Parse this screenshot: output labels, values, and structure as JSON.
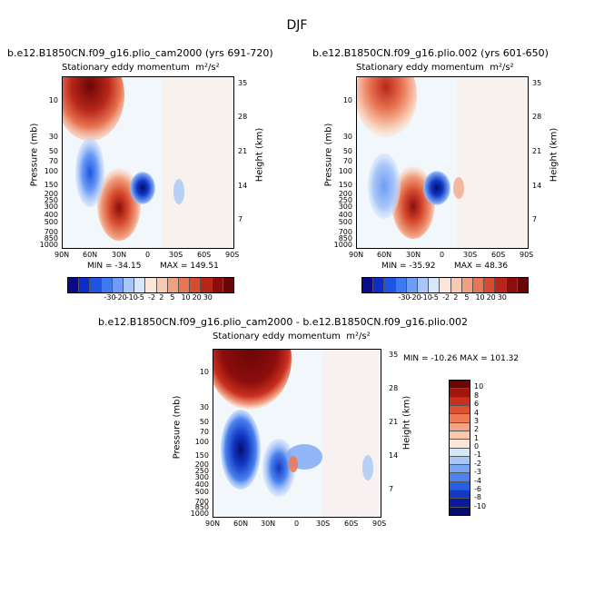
{
  "season": "DJF",
  "panels": [
    {
      "title": "b.e12.B1850CN.f09_g16.plio_cam2000 (yrs 691-720)",
      "subtitle": "Stationary eddy momentum",
      "units": "m²/s²",
      "min_label": "MIN = -34.15",
      "max_label": "MAX = 149.51"
    },
    {
      "title": "b.e12.B1850CN.f09_g16.plio.002 (yrs 601-650)",
      "subtitle": "Stationary eddy momentum",
      "units": "m²/s²",
      "min_label": "MIN = -35.92",
      "max_label": "MAX = 48.36"
    },
    {
      "title": "b.e12.B1850CN.f09_g16.plio_cam2000 - b.e12.B1850CN.f09_g16.plio.002",
      "subtitle": "Stationary eddy momentum",
      "units": "m²/s²",
      "minmax_label": "MIN = -10.26   MAX = 101.32"
    }
  ],
  "axes": {
    "ylabel_left": "Pressure (mb)",
    "ylabel_right": "Height (km)",
    "x_ticks": [
      "90N",
      "60N",
      "30N",
      "0",
      "30S",
      "60S",
      "90S"
    ],
    "pressure_ticks": [
      "10",
      "30",
      "50",
      "70",
      "100",
      "150",
      "200",
      "250",
      "300",
      "400",
      "500",
      "700",
      "850",
      "1000"
    ],
    "height_ticks": [
      "35",
      "28",
      "21",
      "14",
      "7"
    ]
  },
  "colorbar_top": {
    "labels": [
      "-30",
      "-20",
      "-10",
      "-5",
      "-2",
      "2",
      "5",
      "10",
      "20",
      "30"
    ],
    "colors": [
      "#0a0a8c",
      "#0d2ec6",
      "#1e55e0",
      "#3d79ef",
      "#6f9df5",
      "#a8c6f8",
      "#d7e7fb",
      "#fbe6da",
      "#f8c9b1",
      "#f1a07f",
      "#e87553",
      "#d74b2e",
      "#b8261a",
      "#8c0d0d",
      "#6a0606"
    ]
  },
  "colorbar_diff": {
    "labels": [
      "10",
      "8",
      "6",
      "4",
      "3",
      "2",
      "1",
      "0",
      "-1",
      "-2",
      "-3",
      "-4",
      "-6",
      "-8",
      "-10"
    ],
    "colors": [
      "#6a0606",
      "#a3160f",
      "#c92f1e",
      "#de5233",
      "#ec7b56",
      "#f3a283",
      "#f8c7ad",
      "#fbe6da",
      "#d7e7fb",
      "#a8c6f8",
      "#7aa5f4",
      "#4c82ee",
      "#265fe2",
      "#1238c4",
      "#0a1a9a",
      "#050c6e"
    ]
  },
  "chart_data": [
    {
      "type": "heatmap",
      "title": "b.e12.B1850CN.f09_g16.plio_cam2000 (yrs 691-720)",
      "variable": "Stationary eddy momentum (m²/s²)",
      "x_axis": "latitude",
      "x_range": [
        "90N",
        "90S"
      ],
      "y_axis": "Pressure (mb)",
      "y_range": [
        1000,
        10
      ],
      "min": -34.15,
      "max": 149.51,
      "features": [
        {
          "lat": 65,
          "p": 12,
          "value": 149.51,
          "sign": "positive"
        },
        {
          "lat": 28,
          "p": 180,
          "value": 30,
          "sign": "positive"
        },
        {
          "lat": 72,
          "p": 90,
          "value": -20,
          "sign": "negative"
        },
        {
          "lat": 5,
          "p": 150,
          "value": -34.15,
          "sign": "negative"
        }
      ]
    },
    {
      "type": "heatmap",
      "title": "b.e12.B1850CN.f09_g16.plio.002 (yrs 601-650)",
      "variable": "Stationary eddy momentum (m²/s²)",
      "x_axis": "latitude",
      "x_range": [
        "90N",
        "90S"
      ],
      "y_axis": "Pressure (mb)",
      "y_range": [
        1000,
        10
      ],
      "min": -35.92,
      "max": 48.36,
      "features": [
        {
          "lat": 65,
          "p": 12,
          "value": 48.36,
          "sign": "positive"
        },
        {
          "lat": 30,
          "p": 180,
          "value": 30,
          "sign": "positive"
        },
        {
          "lat": 72,
          "p": 90,
          "value": -10,
          "sign": "negative"
        },
        {
          "lat": 8,
          "p": 150,
          "value": -35.92,
          "sign": "negative"
        }
      ]
    },
    {
      "type": "heatmap",
      "title": "b.e12.B1850CN.f09_g16.plio_cam2000 - b.e12.B1850CN.f09_g16.plio.002",
      "variable": "Stationary eddy momentum (m²/s²)",
      "x_axis": "latitude",
      "x_range": [
        "90N",
        "90S"
      ],
      "y_axis": "Pressure (mb)",
      "y_range": [
        1000,
        10
      ],
      "min": -10.26,
      "max": 101.32,
      "features": [
        {
          "lat": 65,
          "p": 12,
          "value": 101.32,
          "sign": "positive"
        },
        {
          "lat": 60,
          "p": 80,
          "value": -10.26,
          "sign": "negative"
        },
        {
          "lat": 30,
          "p": 200,
          "value": -6,
          "sign": "negative"
        },
        {
          "lat": 0,
          "p": 200,
          "value": 3,
          "sign": "positive"
        }
      ]
    }
  ]
}
